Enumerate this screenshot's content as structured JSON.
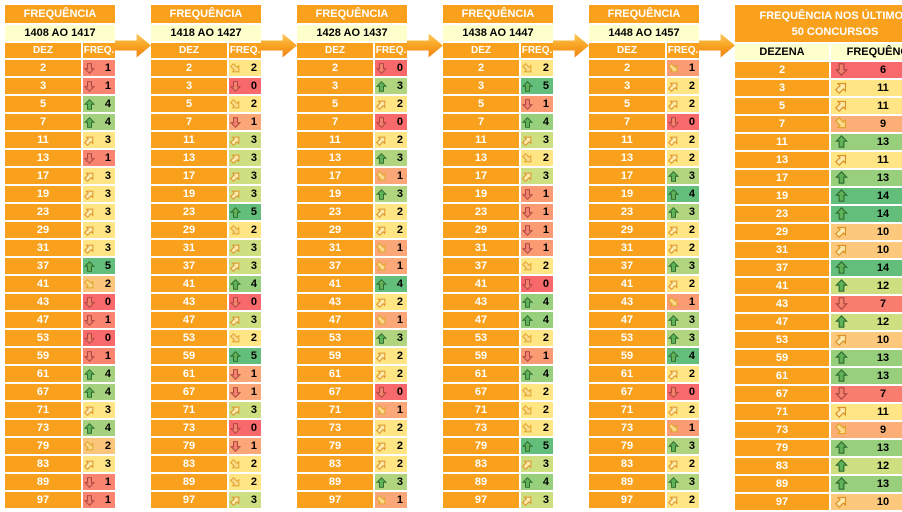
{
  "palette": {
    "header_orange": "#F9A11C",
    "range_yellow": "#FFFFCC",
    "scale_red": "#F8696B",
    "scale_yellow": "#FFE584",
    "scale_green": "#63BE7B"
  },
  "tables": [
    {
      "title": "FREQUÊNCIA",
      "range": "1408 AO 1417",
      "col_dez": "DEZ",
      "col_freq": "FREQ.",
      "rows": [
        {
          "dez": 2,
          "freq": 1,
          "arrow": "down",
          "bg": "#F9846F"
        },
        {
          "dez": 3,
          "freq": 1,
          "arrow": "down",
          "bg": "#F9846F"
        },
        {
          "dez": 5,
          "freq": 4,
          "arrow": "up",
          "bg": "#A5D07E"
        },
        {
          "dez": 7,
          "freq": 4,
          "arrow": "up",
          "bg": "#A5D07E"
        },
        {
          "dez": 11,
          "freq": 3,
          "arrow": "ne",
          "bg": "#FFE584"
        },
        {
          "dez": 13,
          "freq": 1,
          "arrow": "down",
          "bg": "#F9846F"
        },
        {
          "dez": 17,
          "freq": 3,
          "arrow": "ne",
          "bg": "#FFE584"
        },
        {
          "dez": 19,
          "freq": 3,
          "arrow": "ne",
          "bg": "#FFE584"
        },
        {
          "dez": 23,
          "freq": 3,
          "arrow": "ne",
          "bg": "#FFE584"
        },
        {
          "dez": 29,
          "freq": 3,
          "arrow": "ne",
          "bg": "#FFE584"
        },
        {
          "dez": 31,
          "freq": 3,
          "arrow": "ne",
          "bg": "#FFE584"
        },
        {
          "dez": 37,
          "freq": 5,
          "arrow": "up",
          "bg": "#63BE7B"
        },
        {
          "dez": 41,
          "freq": 2,
          "arrow": "se",
          "bg": "#FBC57B"
        },
        {
          "dez": 43,
          "freq": 0,
          "arrow": "down",
          "bg": "#F8696B"
        },
        {
          "dez": 47,
          "freq": 1,
          "arrow": "down",
          "bg": "#F9846F"
        },
        {
          "dez": 53,
          "freq": 0,
          "arrow": "down",
          "bg": "#F8696B"
        },
        {
          "dez": 59,
          "freq": 1,
          "arrow": "down",
          "bg": "#F9846F"
        },
        {
          "dez": 61,
          "freq": 4,
          "arrow": "up",
          "bg": "#A5D07E"
        },
        {
          "dez": 67,
          "freq": 4,
          "arrow": "up",
          "bg": "#A5D07E"
        },
        {
          "dez": 71,
          "freq": 3,
          "arrow": "ne",
          "bg": "#FFE584"
        },
        {
          "dez": 73,
          "freq": 4,
          "arrow": "up",
          "bg": "#A5D07E"
        },
        {
          "dez": 79,
          "freq": 2,
          "arrow": "se",
          "bg": "#FBC57B"
        },
        {
          "dez": 83,
          "freq": 3,
          "arrow": "ne",
          "bg": "#FFE584"
        },
        {
          "dez": 89,
          "freq": 1,
          "arrow": "down",
          "bg": "#F9846F"
        },
        {
          "dez": 97,
          "freq": 1,
          "arrow": "down",
          "bg": "#F9846F"
        }
      ]
    },
    {
      "title": "FREQUÊNCIA",
      "range": "1418 AO 1427",
      "col_dez": "DEZ",
      "col_freq": "FREQ.",
      "rows": [
        {
          "dez": 2,
          "freq": 2,
          "arrow": "se",
          "bg": "#FFE584"
        },
        {
          "dez": 3,
          "freq": 0,
          "arrow": "down",
          "bg": "#F8696B"
        },
        {
          "dez": 5,
          "freq": 2,
          "arrow": "se",
          "bg": "#FFE584"
        },
        {
          "dez": 7,
          "freq": 1,
          "arrow": "down",
          "bg": "#FBA777"
        },
        {
          "dez": 11,
          "freq": 3,
          "arrow": "ne",
          "bg": "#CDDF81"
        },
        {
          "dez": 13,
          "freq": 3,
          "arrow": "ne",
          "bg": "#CDDF81"
        },
        {
          "dez": 17,
          "freq": 3,
          "arrow": "ne",
          "bg": "#CDDF81"
        },
        {
          "dez": 19,
          "freq": 3,
          "arrow": "ne",
          "bg": "#CDDF81"
        },
        {
          "dez": 23,
          "freq": 5,
          "arrow": "up",
          "bg": "#63BE7B"
        },
        {
          "dez": 29,
          "freq": 2,
          "arrow": "se",
          "bg": "#FFE584"
        },
        {
          "dez": 31,
          "freq": 3,
          "arrow": "ne",
          "bg": "#CDDF81"
        },
        {
          "dez": 37,
          "freq": 3,
          "arrow": "ne",
          "bg": "#CDDF81"
        },
        {
          "dez": 41,
          "freq": 4,
          "arrow": "up",
          "bg": "#98CF7D"
        },
        {
          "dez": 43,
          "freq": 0,
          "arrow": "down",
          "bg": "#F8696B"
        },
        {
          "dez": 47,
          "freq": 3,
          "arrow": "ne",
          "bg": "#CDDF81"
        },
        {
          "dez": 53,
          "freq": 2,
          "arrow": "se",
          "bg": "#FFE584"
        },
        {
          "dez": 59,
          "freq": 5,
          "arrow": "up",
          "bg": "#63BE7B"
        },
        {
          "dez": 61,
          "freq": 1,
          "arrow": "down",
          "bg": "#FBA777"
        },
        {
          "dez": 67,
          "freq": 1,
          "arrow": "down",
          "bg": "#FBA777"
        },
        {
          "dez": 71,
          "freq": 3,
          "arrow": "ne",
          "bg": "#CDDF81"
        },
        {
          "dez": 73,
          "freq": 0,
          "arrow": "down",
          "bg": "#F8696B"
        },
        {
          "dez": 79,
          "freq": 1,
          "arrow": "down",
          "bg": "#FBA777"
        },
        {
          "dez": 83,
          "freq": 2,
          "arrow": "se",
          "bg": "#FFE584"
        },
        {
          "dez": 89,
          "freq": 2,
          "arrow": "se",
          "bg": "#FFE584"
        },
        {
          "dez": 97,
          "freq": 3,
          "arrow": "ne",
          "bg": "#CDDF81"
        }
      ]
    },
    {
      "title": "FREQUÊNCIA",
      "range": "1428 AO 1437",
      "col_dez": "DEZ",
      "col_freq": "FREQ.",
      "rows": [
        {
          "dez": 2,
          "freq": 0,
          "arrow": "down",
          "bg": "#F8696B"
        },
        {
          "dez": 3,
          "freq": 3,
          "arrow": "up",
          "bg": "#B1D57F"
        },
        {
          "dez": 5,
          "freq": 2,
          "arrow": "ne",
          "bg": "#FFE584"
        },
        {
          "dez": 7,
          "freq": 0,
          "arrow": "down",
          "bg": "#F8696B"
        },
        {
          "dez": 11,
          "freq": 2,
          "arrow": "ne",
          "bg": "#FFE584"
        },
        {
          "dez": 13,
          "freq": 3,
          "arrow": "up",
          "bg": "#B1D57F"
        },
        {
          "dez": 17,
          "freq": 1,
          "arrow": "se",
          "bg": "#FBA777"
        },
        {
          "dez": 19,
          "freq": 3,
          "arrow": "up",
          "bg": "#B1D57F"
        },
        {
          "dez": 23,
          "freq": 2,
          "arrow": "ne",
          "bg": "#FFE584"
        },
        {
          "dez": 29,
          "freq": 2,
          "arrow": "ne",
          "bg": "#FFE584"
        },
        {
          "dez": 31,
          "freq": 1,
          "arrow": "se",
          "bg": "#FBA777"
        },
        {
          "dez": 37,
          "freq": 1,
          "arrow": "se",
          "bg": "#FBA777"
        },
        {
          "dez": 41,
          "freq": 4,
          "arrow": "up",
          "bg": "#63BE7B"
        },
        {
          "dez": 43,
          "freq": 2,
          "arrow": "ne",
          "bg": "#FFE584"
        },
        {
          "dez": 47,
          "freq": 1,
          "arrow": "se",
          "bg": "#FBA777"
        },
        {
          "dez": 53,
          "freq": 3,
          "arrow": "up",
          "bg": "#B1D57F"
        },
        {
          "dez": 59,
          "freq": 2,
          "arrow": "ne",
          "bg": "#FFE584"
        },
        {
          "dez": 61,
          "freq": 2,
          "arrow": "ne",
          "bg": "#FFE584"
        },
        {
          "dez": 67,
          "freq": 0,
          "arrow": "down",
          "bg": "#F8696B"
        },
        {
          "dez": 71,
          "freq": 1,
          "arrow": "se",
          "bg": "#FBA777"
        },
        {
          "dez": 73,
          "freq": 2,
          "arrow": "ne",
          "bg": "#FFE584"
        },
        {
          "dez": 79,
          "freq": 2,
          "arrow": "ne",
          "bg": "#FFE584"
        },
        {
          "dez": 83,
          "freq": 2,
          "arrow": "ne",
          "bg": "#FFE584"
        },
        {
          "dez": 89,
          "freq": 3,
          "arrow": "up",
          "bg": "#B1D57F"
        },
        {
          "dez": 97,
          "freq": 1,
          "arrow": "se",
          "bg": "#FBA777"
        }
      ]
    },
    {
      "title": "FREQUÊNCIA",
      "range": "1438 AO 1447",
      "col_dez": "DEZ",
      "col_freq": "FREQ.",
      "rows": [
        {
          "dez": 2,
          "freq": 2,
          "arrow": "se",
          "bg": "#FFE584"
        },
        {
          "dez": 3,
          "freq": 5,
          "arrow": "up",
          "bg": "#63BE7B"
        },
        {
          "dez": 5,
          "freq": 1,
          "arrow": "down",
          "bg": "#FA9B74"
        },
        {
          "dez": 7,
          "freq": 4,
          "arrow": "up",
          "bg": "#98CF7D"
        },
        {
          "dez": 11,
          "freq": 3,
          "arrow": "ne",
          "bg": "#CDDF81"
        },
        {
          "dez": 13,
          "freq": 2,
          "arrow": "se",
          "bg": "#FFE584"
        },
        {
          "dez": 17,
          "freq": 3,
          "arrow": "ne",
          "bg": "#CDDF81"
        },
        {
          "dez": 19,
          "freq": 1,
          "arrow": "down",
          "bg": "#FA9B74"
        },
        {
          "dez": 23,
          "freq": 1,
          "arrow": "down",
          "bg": "#FA9B74"
        },
        {
          "dez": 29,
          "freq": 1,
          "arrow": "down",
          "bg": "#FA9B74"
        },
        {
          "dez": 31,
          "freq": 1,
          "arrow": "down",
          "bg": "#FA9B74"
        },
        {
          "dez": 37,
          "freq": 2,
          "arrow": "se",
          "bg": "#FFE584"
        },
        {
          "dez": 41,
          "freq": 0,
          "arrow": "down",
          "bg": "#F8696B"
        },
        {
          "dez": 43,
          "freq": 4,
          "arrow": "up",
          "bg": "#98CF7D"
        },
        {
          "dez": 47,
          "freq": 4,
          "arrow": "up",
          "bg": "#98CF7D"
        },
        {
          "dez": 53,
          "freq": 2,
          "arrow": "se",
          "bg": "#FFE584"
        },
        {
          "dez": 59,
          "freq": 1,
          "arrow": "down",
          "bg": "#FA9B74"
        },
        {
          "dez": 61,
          "freq": 4,
          "arrow": "up",
          "bg": "#98CF7D"
        },
        {
          "dez": 67,
          "freq": 2,
          "arrow": "se",
          "bg": "#FFE584"
        },
        {
          "dez": 71,
          "freq": 2,
          "arrow": "se",
          "bg": "#FFE584"
        },
        {
          "dez": 73,
          "freq": 2,
          "arrow": "se",
          "bg": "#FFE584"
        },
        {
          "dez": 79,
          "freq": 5,
          "arrow": "up",
          "bg": "#63BE7B"
        },
        {
          "dez": 83,
          "freq": 3,
          "arrow": "ne",
          "bg": "#CDDF81"
        },
        {
          "dez": 89,
          "freq": 4,
          "arrow": "up",
          "bg": "#98CF7D"
        },
        {
          "dez": 97,
          "freq": 3,
          "arrow": "ne",
          "bg": "#CDDF81"
        }
      ]
    },
    {
      "title": "FREQUÊNCIA",
      "range": "1448 AO 1457",
      "col_dez": "DEZ",
      "col_freq": "FREQ.",
      "rows": [
        {
          "dez": 2,
          "freq": 1,
          "arrow": "se",
          "bg": "#FA9B74"
        },
        {
          "dez": 3,
          "freq": 2,
          "arrow": "ne",
          "bg": "#FFE584"
        },
        {
          "dez": 5,
          "freq": 2,
          "arrow": "ne",
          "bg": "#FFE584"
        },
        {
          "dez": 7,
          "freq": 0,
          "arrow": "down",
          "bg": "#F8696B"
        },
        {
          "dez": 11,
          "freq": 2,
          "arrow": "ne",
          "bg": "#FFE584"
        },
        {
          "dez": 13,
          "freq": 2,
          "arrow": "ne",
          "bg": "#FFE584"
        },
        {
          "dez": 17,
          "freq": 3,
          "arrow": "up",
          "bg": "#B1D57F"
        },
        {
          "dez": 19,
          "freq": 4,
          "arrow": "up",
          "bg": "#63BE7B"
        },
        {
          "dez": 23,
          "freq": 3,
          "arrow": "up",
          "bg": "#B1D57F"
        },
        {
          "dez": 29,
          "freq": 2,
          "arrow": "ne",
          "bg": "#FFE584"
        },
        {
          "dez": 31,
          "freq": 2,
          "arrow": "ne",
          "bg": "#FFE584"
        },
        {
          "dez": 37,
          "freq": 3,
          "arrow": "up",
          "bg": "#B1D57F"
        },
        {
          "dez": 41,
          "freq": 2,
          "arrow": "ne",
          "bg": "#FFE584"
        },
        {
          "dez": 43,
          "freq": 1,
          "arrow": "se",
          "bg": "#FA9B74"
        },
        {
          "dez": 47,
          "freq": 3,
          "arrow": "up",
          "bg": "#B1D57F"
        },
        {
          "dez": 53,
          "freq": 3,
          "arrow": "up",
          "bg": "#B1D57F"
        },
        {
          "dez": 59,
          "freq": 4,
          "arrow": "up",
          "bg": "#63BE7B"
        },
        {
          "dez": 61,
          "freq": 2,
          "arrow": "ne",
          "bg": "#FFE584"
        },
        {
          "dez": 67,
          "freq": 0,
          "arrow": "down",
          "bg": "#F8696B"
        },
        {
          "dez": 71,
          "freq": 2,
          "arrow": "ne",
          "bg": "#FFE584"
        },
        {
          "dez": 73,
          "freq": 1,
          "arrow": "se",
          "bg": "#FA9B74"
        },
        {
          "dez": 79,
          "freq": 3,
          "arrow": "up",
          "bg": "#B1D57F"
        },
        {
          "dez": 83,
          "freq": 2,
          "arrow": "ne",
          "bg": "#FFE584"
        },
        {
          "dez": 89,
          "freq": 3,
          "arrow": "up",
          "bg": "#B1D57F"
        },
        {
          "dez": 97,
          "freq": 2,
          "arrow": "ne",
          "bg": "#FFE584"
        }
      ]
    }
  ],
  "summary": {
    "title_line1": "FREQUÊNCIA NOS ÚLTIMOS",
    "title_line2": "50 CONCURSOS",
    "col_dez": "DEZENA",
    "col_freq": "FREQUÊNCIA",
    "rows": [
      {
        "dez": 2,
        "freq": 6,
        "arrow": "down",
        "bg": "#F8696B"
      },
      {
        "dez": 3,
        "freq": 11,
        "arrow": "ne",
        "bg": "#FFE584"
      },
      {
        "dez": 5,
        "freq": 11,
        "arrow": "ne",
        "bg": "#FFE584"
      },
      {
        "dez": 7,
        "freq": 9,
        "arrow": "se",
        "bg": "#FBAF76"
      },
      {
        "dez": 11,
        "freq": 13,
        "arrow": "up",
        "bg": "#98CF7D"
      },
      {
        "dez": 13,
        "freq": 11,
        "arrow": "ne",
        "bg": "#FFE584"
      },
      {
        "dez": 17,
        "freq": 13,
        "arrow": "up",
        "bg": "#98CF7D"
      },
      {
        "dez": 19,
        "freq": 14,
        "arrow": "up",
        "bg": "#63BE7B"
      },
      {
        "dez": 23,
        "freq": 14,
        "arrow": "up",
        "bg": "#63BE7B"
      },
      {
        "dez": 29,
        "freq": 10,
        "arrow": "ne",
        "bg": "#FCC87C"
      },
      {
        "dez": 31,
        "freq": 10,
        "arrow": "ne",
        "bg": "#FCC87C"
      },
      {
        "dez": 37,
        "freq": 14,
        "arrow": "up",
        "bg": "#63BE7B"
      },
      {
        "dez": 41,
        "freq": 12,
        "arrow": "up",
        "bg": "#CDDF81"
      },
      {
        "dez": 43,
        "freq": 7,
        "arrow": "down",
        "bg": "#F97D6E"
      },
      {
        "dez": 47,
        "freq": 12,
        "arrow": "up",
        "bg": "#CDDF81"
      },
      {
        "dez": 53,
        "freq": 10,
        "arrow": "ne",
        "bg": "#FCC87C"
      },
      {
        "dez": 59,
        "freq": 13,
        "arrow": "up",
        "bg": "#98CF7D"
      },
      {
        "dez": 61,
        "freq": 13,
        "arrow": "up",
        "bg": "#98CF7D"
      },
      {
        "dez": 67,
        "freq": 7,
        "arrow": "down",
        "bg": "#F97D6E"
      },
      {
        "dez": 71,
        "freq": 11,
        "arrow": "ne",
        "bg": "#FFE584"
      },
      {
        "dez": 73,
        "freq": 9,
        "arrow": "se",
        "bg": "#FBAF76"
      },
      {
        "dez": 79,
        "freq": 13,
        "arrow": "up",
        "bg": "#98CF7D"
      },
      {
        "dez": 83,
        "freq": 12,
        "arrow": "up",
        "bg": "#CDDF81"
      },
      {
        "dez": 89,
        "freq": 13,
        "arrow": "up",
        "bg": "#98CF7D"
      },
      {
        "dez": 97,
        "freq": 10,
        "arrow": "ne",
        "bg": "#FCC87C"
      }
    ]
  }
}
